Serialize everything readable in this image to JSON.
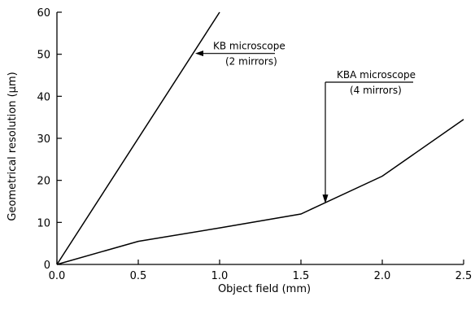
{
  "chart_data": {
    "type": "line",
    "xlabel": "Object field (mm)",
    "ylabel": "Geometrical resolution (µm)",
    "xlim": [
      0,
      2.5
    ],
    "ylim": [
      0,
      60
    ],
    "xticks": [
      0.0,
      0.5,
      1.0,
      1.5,
      2.0,
      2.5
    ],
    "xtick_labels": [
      "0.0",
      "0.5",
      "1.0",
      "1.5",
      "2.0",
      "2.5"
    ],
    "yticks": [
      0,
      10,
      20,
      30,
      40,
      50,
      60
    ],
    "ytick_labels": [
      "0",
      "10",
      "20",
      "30",
      "40",
      "50",
      "60"
    ],
    "grid": false,
    "series": [
      {
        "name": "KB microscope",
        "x": [
          0.0,
          1.0
        ],
        "y": [
          0.0,
          60.0
        ]
      },
      {
        "name": "KBA microscope",
        "x": [
          0.0,
          0.5,
          1.0,
          1.5,
          2.0,
          2.5
        ],
        "y": [
          0.0,
          5.5,
          8.7,
          12.0,
          21.0,
          34.5
        ]
      }
    ],
    "annotations": [
      {
        "line1": "KB microscope",
        "line2": "(2 mirrors)",
        "points_to": {
          "x": 0.84,
          "y": 50.0
        }
      },
      {
        "line1": "KBA microscope",
        "line2": "(4 mirrors)",
        "points_to": {
          "x": 1.65,
          "y": 14.5
        }
      }
    ]
  }
}
